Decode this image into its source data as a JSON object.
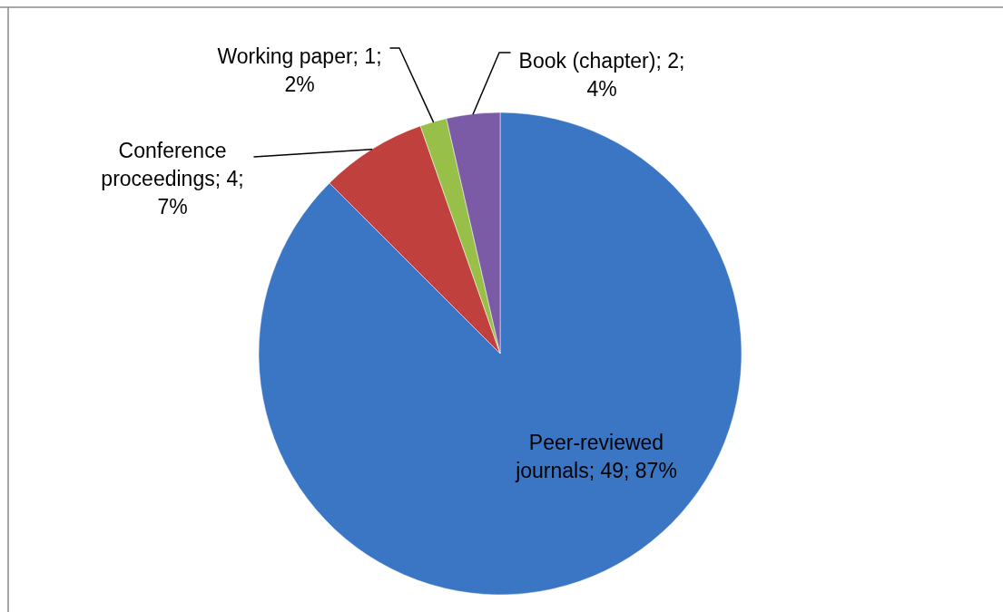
{
  "chart_data": {
    "type": "pie",
    "categories": [
      "Peer-reviewed journals",
      "Conference proceedings",
      "Working paper",
      "Book (chapter)"
    ],
    "values": [
      49,
      4,
      1,
      2
    ],
    "colors": [
      "#3a76c4",
      "#c0403d",
      "#98bf48",
      "#7b5aa6"
    ],
    "value_labels": [
      "49; 87%",
      "4; 7%",
      "1; 2%",
      "2; 4%"
    ]
  }
}
